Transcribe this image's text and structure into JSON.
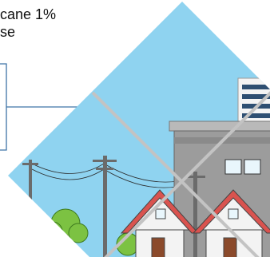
{
  "caption": {
    "lines": [
      "cane 1%",
      "se"
    ]
  }
}
